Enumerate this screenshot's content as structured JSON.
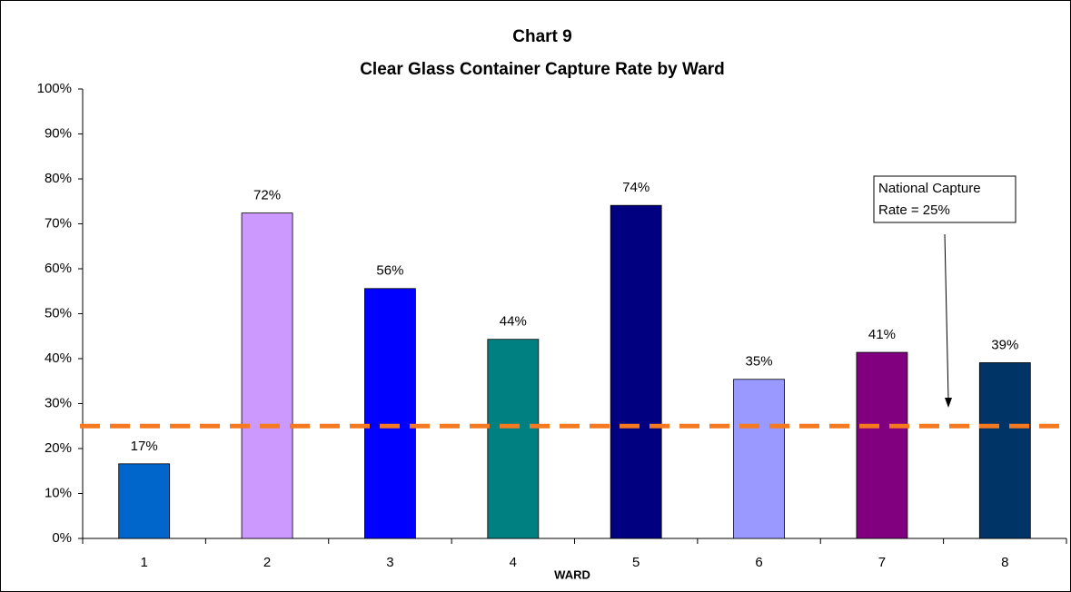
{
  "chart_data": {
    "type": "bar",
    "title": "Chart 9",
    "subtitle": "Clear Glass Container Capture Rate by Ward",
    "x_label": "WARD",
    "categories": [
      "1",
      "2",
      "3",
      "4",
      "5",
      "6",
      "7",
      "8"
    ],
    "values": [
      16.6,
      72.4,
      55.6,
      44.3,
      74.1,
      35.4,
      41.4,
      39.1
    ],
    "value_labels": [
      "17%",
      "72%",
      "56%",
      "44%",
      "74%",
      "35%",
      "41%",
      "39%"
    ],
    "colors": [
      "#0066cc",
      "#cc99ff",
      "#0000ff",
      "#008080",
      "#000080",
      "#9999ff",
      "#800080",
      "#003366"
    ],
    "ylim": [
      0,
      100
    ],
    "yticks": [
      {
        "value": 0,
        "label": "0%"
      },
      {
        "value": 10,
        "label": "10%"
      },
      {
        "value": 20,
        "label": "20%"
      },
      {
        "value": 30,
        "label": "30%"
      },
      {
        "value": 40,
        "label": "40%"
      },
      {
        "value": 50,
        "label": "50%"
      },
      {
        "value": 60,
        "label": "60%"
      },
      {
        "value": 70,
        "label": "70%"
      },
      {
        "value": 80,
        "label": "80%"
      },
      {
        "value": 90,
        "label": "90%"
      },
      {
        "value": 100,
        "label": "100%"
      }
    ],
    "grid": false,
    "reference_line": {
      "value": 25,
      "color": "#f47920"
    },
    "annotation": [
      "National Capture",
      "Rate = 25%"
    ]
  }
}
